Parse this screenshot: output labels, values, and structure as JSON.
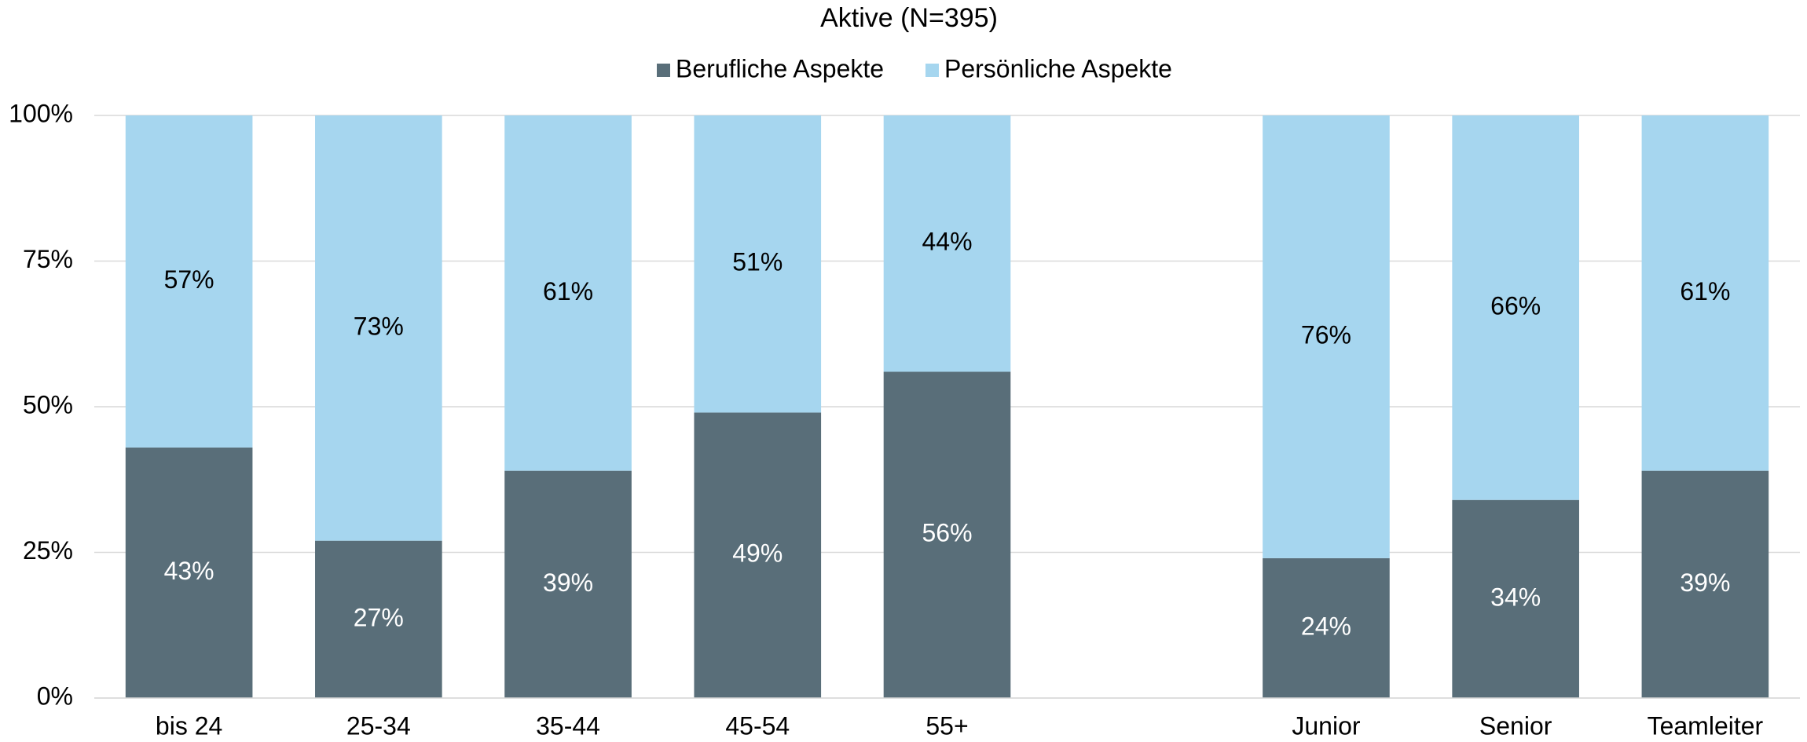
{
  "chart_data": {
    "type": "stacked_bar",
    "title": "Aktive (N=395)",
    "categories": [
      "bis 24",
      "25-34",
      "35-44",
      "45-54",
      "55+",
      null,
      "Junior",
      "Senior",
      "Teamleiter"
    ],
    "series": [
      {
        "name": "Berufliche Aspekte",
        "color": "#596e79",
        "label_color": "#ffffff",
        "values": [
          43,
          27,
          39,
          49,
          56,
          null,
          24,
          34,
          39
        ],
        "value_labels": [
          "43%",
          "27%",
          "39%",
          "49%",
          "56%",
          null,
          "24%",
          "34%",
          "39%"
        ]
      },
      {
        "name": "Persönliche Aspekte",
        "color": "#a6d6ef",
        "label_color": "#000000",
        "values": [
          57,
          73,
          61,
          51,
          44,
          null,
          76,
          66,
          61
        ],
        "value_labels": [
          "57%",
          "73%",
          "61%",
          "51%",
          "44%",
          null,
          "76%",
          "66%",
          "61%"
        ]
      }
    ],
    "ylim": [
      0,
      100
    ],
    "yticks": [
      {
        "value": 0,
        "label": "0%"
      },
      {
        "value": 25,
        "label": "25%"
      },
      {
        "value": 50,
        "label": "50%"
      },
      {
        "value": 75,
        "label": "75%"
      },
      {
        "value": 100,
        "label": "100%"
      }
    ],
    "grid": true,
    "legend": "top"
  }
}
